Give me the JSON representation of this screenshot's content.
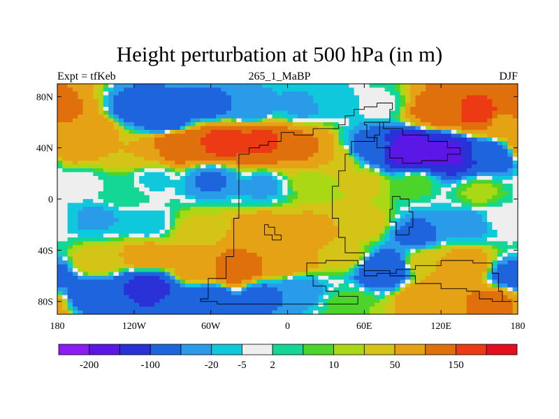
{
  "title": "Height perturbation at 500 hPa (in m)",
  "left_label": "Expt = tfKeb",
  "center_label": "265_1_MaBP",
  "right_label": "DJF",
  "chart_data": {
    "type": "heatmap",
    "variable": "500 hPa geopotential height perturbation",
    "units": "m",
    "x_range": [
      -180,
      180
    ],
    "y_range": [
      -90,
      90
    ],
    "x_ticks": [
      {
        "value": -180,
        "label": "180"
      },
      {
        "value": -120,
        "label": "120W"
      },
      {
        "value": -60,
        "label": "60W"
      },
      {
        "value": 0,
        "label": "0"
      },
      {
        "value": 60,
        "label": "60E"
      },
      {
        "value": 120,
        "label": "120E"
      },
      {
        "value": 180,
        "label": "180"
      }
    ],
    "y_ticks": [
      {
        "value": 80,
        "label": "80N"
      },
      {
        "value": 40,
        "label": "40N"
      },
      {
        "value": 0,
        "label": "0"
      },
      {
        "value": -40,
        "label": "40S"
      },
      {
        "value": -80,
        "label": "80S"
      }
    ],
    "colorbar": {
      "colors": [
        "#8c1cf5",
        "#5a17e6",
        "#2a32d7",
        "#1e64dc",
        "#2a9be8",
        "#10c8dc",
        "#eeeeee",
        "#14d695",
        "#4cd42a",
        "#aad814",
        "#d4c418",
        "#e4a214",
        "#e0700c",
        "#eb3a14",
        "#e60d1e"
      ],
      "levels": [
        -200,
        -100,
        -20,
        -5,
        2,
        10,
        50,
        150
      ],
      "label_boundary_index": [
        1,
        3,
        5,
        6,
        7,
        9,
        11,
        13
      ]
    },
    "fields": [
      {
        "lon": -178,
        "lat": 68,
        "v": 60
      },
      {
        "lon": -172,
        "lat": 42,
        "v": 40
      },
      {
        "lon": -150,
        "lat": 55,
        "v": 25
      },
      {
        "lon": -120,
        "lat": 70,
        "v": -30
      },
      {
        "lon": -95,
        "lat": 62,
        "v": -45
      },
      {
        "lon": -60,
        "lat": 72,
        "v": -25
      },
      {
        "lon": -30,
        "lat": 70,
        "v": -18
      },
      {
        "lon": 10,
        "lat": 72,
        "v": -12
      },
      {
        "lon": 40,
        "lat": 75,
        "v": -6
      },
      {
        "lon": 75,
        "lat": 75,
        "v": -3
      },
      {
        "lon": 115,
        "lat": 70,
        "v": 70
      },
      {
        "lon": 150,
        "lat": 68,
        "v": 120
      },
      {
        "lon": 170,
        "lat": 60,
        "v": 40
      },
      {
        "lon": -120,
        "lat": 35,
        "v": 20
      },
      {
        "lon": -85,
        "lat": 42,
        "v": 90
      },
      {
        "lon": -50,
        "lat": 45,
        "v": 120
      },
      {
        "lon": -20,
        "lat": 45,
        "v": 110
      },
      {
        "lon": 10,
        "lat": 40,
        "v": 60
      },
      {
        "lon": 35,
        "lat": 30,
        "v": 20
      },
      {
        "lon": 65,
        "lat": 40,
        "v": -25
      },
      {
        "lon": 95,
        "lat": 38,
        "v": -140
      },
      {
        "lon": 125,
        "lat": 35,
        "v": -110
      },
      {
        "lon": 160,
        "lat": 35,
        "v": -40
      },
      {
        "lon": -160,
        "lat": 10,
        "v": -4
      },
      {
        "lon": -130,
        "lat": 5,
        "v": 1
      },
      {
        "lon": -105,
        "lat": 15,
        "v": -6
      },
      {
        "lon": -60,
        "lat": 15,
        "v": -22
      },
      {
        "lon": -20,
        "lat": 10,
        "v": -12
      },
      {
        "lon": 20,
        "lat": 12,
        "v": 6
      },
      {
        "lon": 60,
        "lat": 12,
        "v": 12
      },
      {
        "lon": 100,
        "lat": 12,
        "v": 4
      },
      {
        "lon": 150,
        "lat": 5,
        "v": 6
      },
      {
        "lon": -150,
        "lat": -15,
        "v": -12
      },
      {
        "lon": -110,
        "lat": -20,
        "v": -8
      },
      {
        "lon": -70,
        "lat": -25,
        "v": 12
      },
      {
        "lon": -20,
        "lat": -25,
        "v": 30
      },
      {
        "lon": 20,
        "lat": -25,
        "v": 25
      },
      {
        "lon": 60,
        "lat": -20,
        "v": 15
      },
      {
        "lon": 100,
        "lat": -28,
        "v": -25
      },
      {
        "lon": 140,
        "lat": -20,
        "v": -15
      },
      {
        "lon": 170,
        "lat": -15,
        "v": -3
      },
      {
        "lon": -150,
        "lat": -50,
        "v": 18
      },
      {
        "lon": -110,
        "lat": -45,
        "v": 30
      },
      {
        "lon": -70,
        "lat": -52,
        "v": 40
      },
      {
        "lon": -40,
        "lat": -55,
        "v": 80
      },
      {
        "lon": 0,
        "lat": -48,
        "v": 40
      },
      {
        "lon": 45,
        "lat": -45,
        "v": 12
      },
      {
        "lon": 75,
        "lat": -55,
        "v": -50
      },
      {
        "lon": 110,
        "lat": -50,
        "v": 20
      },
      {
        "lon": 140,
        "lat": -52,
        "v": 35
      },
      {
        "lon": 175,
        "lat": -60,
        "v": -30
      },
      {
        "lon": -150,
        "lat": -72,
        "v": -40
      },
      {
        "lon": -110,
        "lat": -68,
        "v": -60
      },
      {
        "lon": -60,
        "lat": -78,
        "v": -35
      },
      {
        "lon": -20,
        "lat": -75,
        "v": -25
      },
      {
        "lon": 10,
        "lat": -70,
        "v": -15
      },
      {
        "lon": 50,
        "lat": -82,
        "v": 5
      },
      {
        "lon": 110,
        "lat": -78,
        "v": 40
      },
      {
        "lon": 160,
        "lat": -80,
        "v": 60
      }
    ]
  }
}
